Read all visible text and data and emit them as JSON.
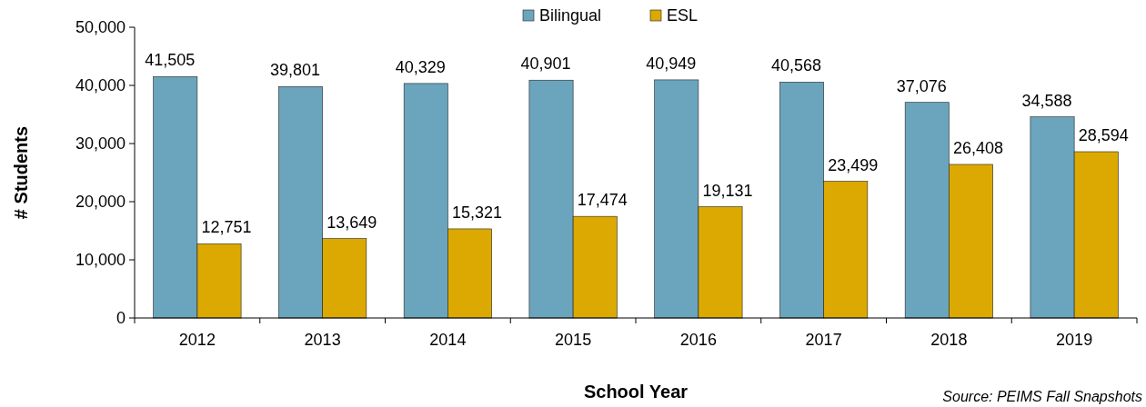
{
  "chart_data": {
    "type": "bar",
    "xlabel": "School Year",
    "ylabel": "# Students",
    "categories": [
      "2012",
      "2013",
      "2014",
      "2015",
      "2016",
      "2017",
      "2018",
      "2019"
    ],
    "series": [
      {
        "name": "Bilingual",
        "color": "#6aa5bd",
        "values": [
          41505,
          39801,
          40329,
          40901,
          40949,
          40568,
          37076,
          34588
        ],
        "value_labels": [
          "41,505",
          "39,801",
          "40,329",
          "40,901",
          "40,949",
          "40,568",
          "37,076",
          "34,588"
        ]
      },
      {
        "name": "ESL",
        "color": "#dba901",
        "values": [
          12751,
          13649,
          15321,
          17474,
          19131,
          23499,
          26408,
          28594
        ],
        "value_labels": [
          "12,751",
          "13,649",
          "15,321",
          "17,474",
          "19,131",
          "23,499",
          "26,408",
          "28,594"
        ]
      }
    ],
    "ylim": [
      0,
      50000
    ],
    "yticks": [
      {
        "value": 0,
        "label": "0"
      },
      {
        "value": 10000,
        "label": "10,000"
      },
      {
        "value": 20000,
        "label": "20,000"
      },
      {
        "value": 30000,
        "label": "30,000"
      },
      {
        "value": 40000,
        "label": "40,000"
      },
      {
        "value": 50000,
        "label": "50,000"
      }
    ],
    "legend": "top",
    "grid": false,
    "annotations": [
      "Source: PEIMS Fall Snapshots"
    ]
  }
}
